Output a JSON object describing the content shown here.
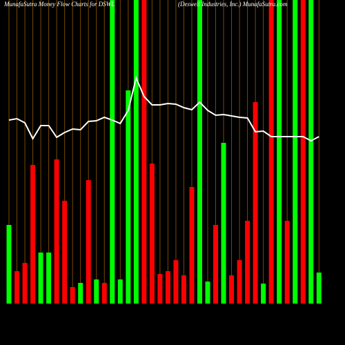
{
  "chart_data": {
    "type": "bar",
    "title": "MunafaSutra  Money Flow  Charts for DSWL",
    "subtitle": "(Deswell Industries, Inc.) MunafaSutra.com",
    "ylim": [
      0,
      440
    ],
    "grid": true,
    "grid_color": "#7a4a00",
    "values": [
      114,
      47,
      59,
      201,
      74,
      74,
      209,
      149,
      24,
      30,
      179,
      35,
      30,
      440,
      35,
      309,
      440,
      440,
      203,
      43,
      47,
      63,
      41,
      169,
      440,
      32,
      114,
      233,
      41,
      63,
      120,
      292,
      29,
      440,
      440,
      120,
      440,
      440,
      440,
      45
    ],
    "colors": [
      "#00ff00",
      "#ff0000",
      "#ff0000",
      "#ff0000",
      "#00ff00",
      "#00ff00",
      "#ff0000",
      "#ff0000",
      "#ff0000",
      "#00ff00",
      "#ff0000",
      "#00ff00",
      "#ff0000",
      "#00ff00",
      "#00ff00",
      "#00ff00",
      "#00ff00",
      "#ff0000",
      "#ff0000",
      "#ff0000",
      "#ff0000",
      "#ff0000",
      "#ff0000",
      "#ff0000",
      "#00ff00",
      "#00ff00",
      "#ff0000",
      "#00ff00",
      "#ff0000",
      "#ff0000",
      "#ff0000",
      "#ff0000",
      "#00ff00",
      "#ff0000",
      "#00ff00",
      "#ff0000",
      "#00ff00",
      "#ff0000",
      "#00ff00",
      "#00ff00"
    ],
    "line": {
      "color": "#ffffff",
      "values": [
        266,
        268,
        262,
        239,
        258,
        258,
        241,
        248,
        253,
        252,
        264,
        265,
        270,
        266,
        261,
        280,
        327,
        300,
        288,
        288,
        290,
        289,
        284,
        281,
        292,
        280,
        273,
        274,
        272,
        270,
        269,
        249,
        250,
        242,
        242,
        242,
        242,
        242,
        236,
        242
      ]
    }
  }
}
